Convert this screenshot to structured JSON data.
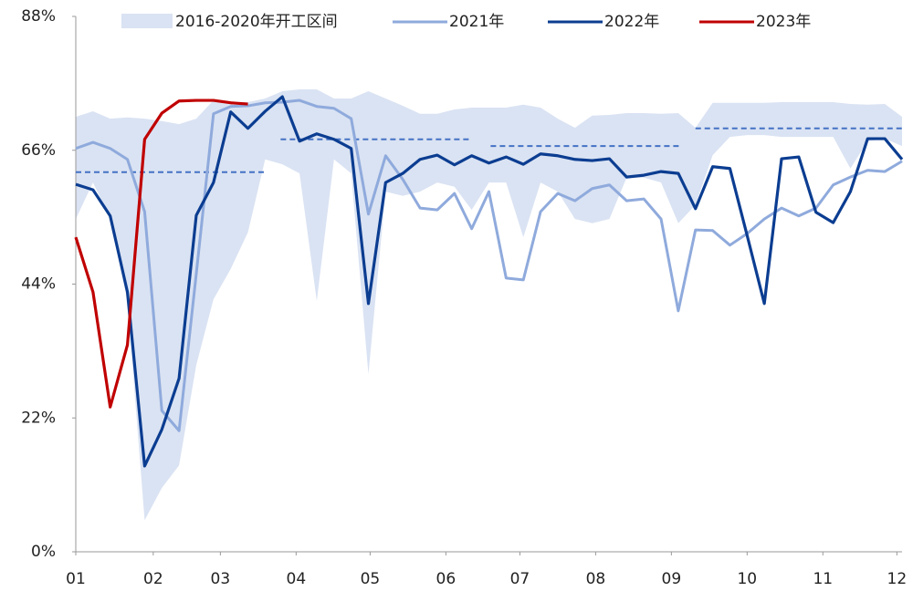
{
  "chart_data": {
    "type": "line",
    "ylim": [
      0,
      88
    ],
    "yticks": [
      {
        "value": 0,
        "label": "0%"
      },
      {
        "value": 22,
        "label": "22%"
      },
      {
        "value": 44,
        "label": "44%"
      },
      {
        "value": 66,
        "label": "66%"
      },
      {
        "value": 88,
        "label": "88%"
      }
    ],
    "xlim": [
      0,
      48
    ],
    "xticks": [
      {
        "value": 0,
        "label": "01"
      },
      {
        "value": 4.5,
        "label": "02"
      },
      {
        "value": 8.4,
        "label": "03"
      },
      {
        "value": 12.8,
        "label": "04"
      },
      {
        "value": 17.1,
        "label": "05"
      },
      {
        "value": 21.5,
        "label": "06"
      },
      {
        "value": 25.8,
        "label": "07"
      },
      {
        "value": 30.2,
        "label": "08"
      },
      {
        "value": 34.6,
        "label": "09"
      },
      {
        "value": 39,
        "label": "10"
      },
      {
        "value": 43.4,
        "label": "11"
      },
      {
        "value": 47.7,
        "label": "12"
      }
    ],
    "band": {
      "name": "2016-2020年开工区间",
      "color": "#dae3f3",
      "upper": [
        71.5,
        72.4,
        71.2,
        71.4,
        71.2,
        70.8,
        70.3,
        71.2,
        74.2,
        73.9,
        73.9,
        74.5,
        75.7,
        76.0,
        76.0,
        74.5,
        74.5,
        75.7,
        74.5,
        73.3,
        72.0,
        72.0,
        72.7,
        73.0,
        73.0,
        73.0,
        73.5,
        73.0,
        71.2,
        69.7,
        71.7,
        71.8,
        72.1,
        72.1,
        72.0,
        72.1,
        69.7,
        73.8,
        73.8,
        73.8,
        73.8,
        73.9,
        73.9,
        73.9,
        73.9,
        73.6,
        73.5,
        73.6,
        71.5
      ],
      "lower": [
        54.7,
        60.7,
        54.7,
        41.2,
        5.2,
        10.5,
        14.2,
        30.7,
        41.5,
        46.5,
        52.5,
        64.5,
        63.7,
        62.2,
        41.2,
        64.5,
        62.2,
        29.2,
        59.2,
        58.5,
        59.2,
        60.7,
        60.0,
        56.2,
        60.7,
        60.7,
        51.7,
        60.7,
        59.2,
        54.7,
        54.0,
        54.7,
        61.5,
        61.5,
        60.7,
        54.0,
        57.0,
        65.2,
        68.2,
        68.5,
        68.5,
        68.2,
        68.2,
        68.2,
        68.2,
        63.0,
        67.5,
        67.9,
        66.7
      ]
    },
    "series": [
      {
        "name": "2021年",
        "color": "#8faadc",
        "values": [
          66.3,
          67.3,
          66.3,
          64.5,
          55.9,
          23.2,
          19.9,
          45.7,
          72.0,
          73.2,
          73.3,
          73.8,
          73.9,
          74.2,
          73.2,
          72.9,
          71.2,
          55.5,
          65.1,
          61.2,
          56.5,
          56.2,
          58.9,
          53.1,
          59.2,
          45.0,
          44.7,
          55.9,
          58.9,
          57.7,
          59.7,
          60.3,
          57.7,
          58.0,
          54.7,
          39.6,
          52.9,
          52.8,
          50.4,
          52.3,
          54.7,
          56.5,
          55.2,
          56.5,
          60.3,
          61.6,
          62.7,
          62.5,
          64.2
        ]
      },
      {
        "name": "2022年",
        "color": "#0b3d91",
        "values": [
          60.4,
          59.5,
          55.2,
          42.7,
          14.1,
          20.1,
          28.5,
          55.3,
          60.7,
          72.3,
          69.6,
          72.4,
          74.8,
          67.5,
          68.7,
          67.8,
          66.3,
          40.8,
          60.7,
          62.2,
          64.5,
          65.2,
          63.6,
          65.1,
          63.9,
          64.9,
          63.7,
          65.4,
          65.1,
          64.5,
          64.3,
          64.6,
          61.6,
          61.9,
          62.5,
          62.2,
          56.4,
          63.3,
          63.0,
          52.0,
          40.8,
          64.6,
          64.9,
          55.8,
          54.1,
          59.2,
          67.9,
          67.9,
          64.5
        ]
      },
      {
        "name": "2023年",
        "color": "#c00000",
        "values": [
          51.7,
          42.7,
          23.8,
          34.0,
          67.8,
          72.1,
          74.1,
          74.2,
          74.2,
          73.8,
          73.6,
          null,
          null,
          null,
          null,
          null,
          null,
          null,
          null,
          null,
          null,
          null,
          null,
          null,
          null,
          null,
          null,
          null,
          null,
          null,
          null,
          null,
          null,
          null,
          null,
          null,
          null,
          null,
          null,
          null,
          null,
          null,
          null,
          null,
          null,
          null,
          null,
          null,
          null
        ]
      }
    ],
    "reference_lines": [
      {
        "color": "#4472c4",
        "value": 62.4,
        "x": [
          0,
          11
        ]
      },
      {
        "color": "#4472c4",
        "value": 67.8,
        "x": [
          11.9,
          23
        ]
      },
      {
        "color": "#4472c4",
        "value": 66.7,
        "x": [
          24.1,
          35.1
        ]
      },
      {
        "color": "#4472c4",
        "value": 69.6,
        "x": [
          36,
          48
        ]
      }
    ]
  }
}
